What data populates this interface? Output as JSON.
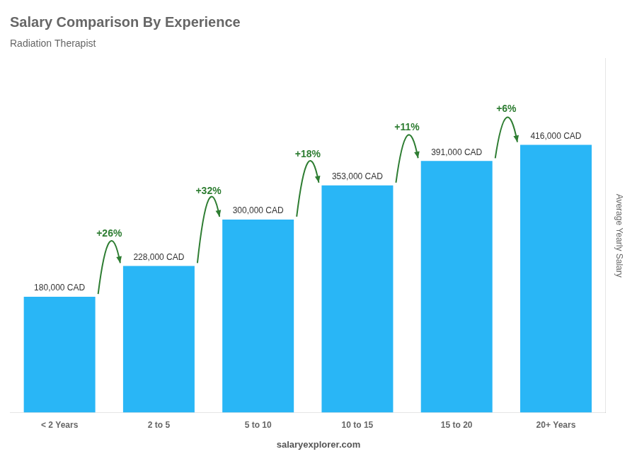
{
  "chart_data": {
    "type": "bar",
    "title": "Salary Comparison By Experience",
    "subtitle": "Radiation Therapist",
    "categories": [
      "< 2 Years",
      "2 to 5",
      "5 to 10",
      "10 to 15",
      "15 to 20",
      "20+ Years"
    ],
    "values": [
      180000,
      228000,
      300000,
      353000,
      391000,
      416000
    ],
    "value_labels": [
      "180,000 CAD",
      "228,000 CAD",
      "300,000 CAD",
      "353,000 CAD",
      "391,000 CAD",
      "416,000 CAD"
    ],
    "data_labels": true,
    "annotations": [
      "+26%",
      "+32%",
      "+18%",
      "+11%",
      "+6%"
    ],
    "ylabel": "Average Yearly Salary",
    "footer": "salaryexplorer.com",
    "color": "#29b6f6",
    "ylim": [
      0,
      550000
    ],
    "grid": false,
    "tick_labels": "x"
  }
}
